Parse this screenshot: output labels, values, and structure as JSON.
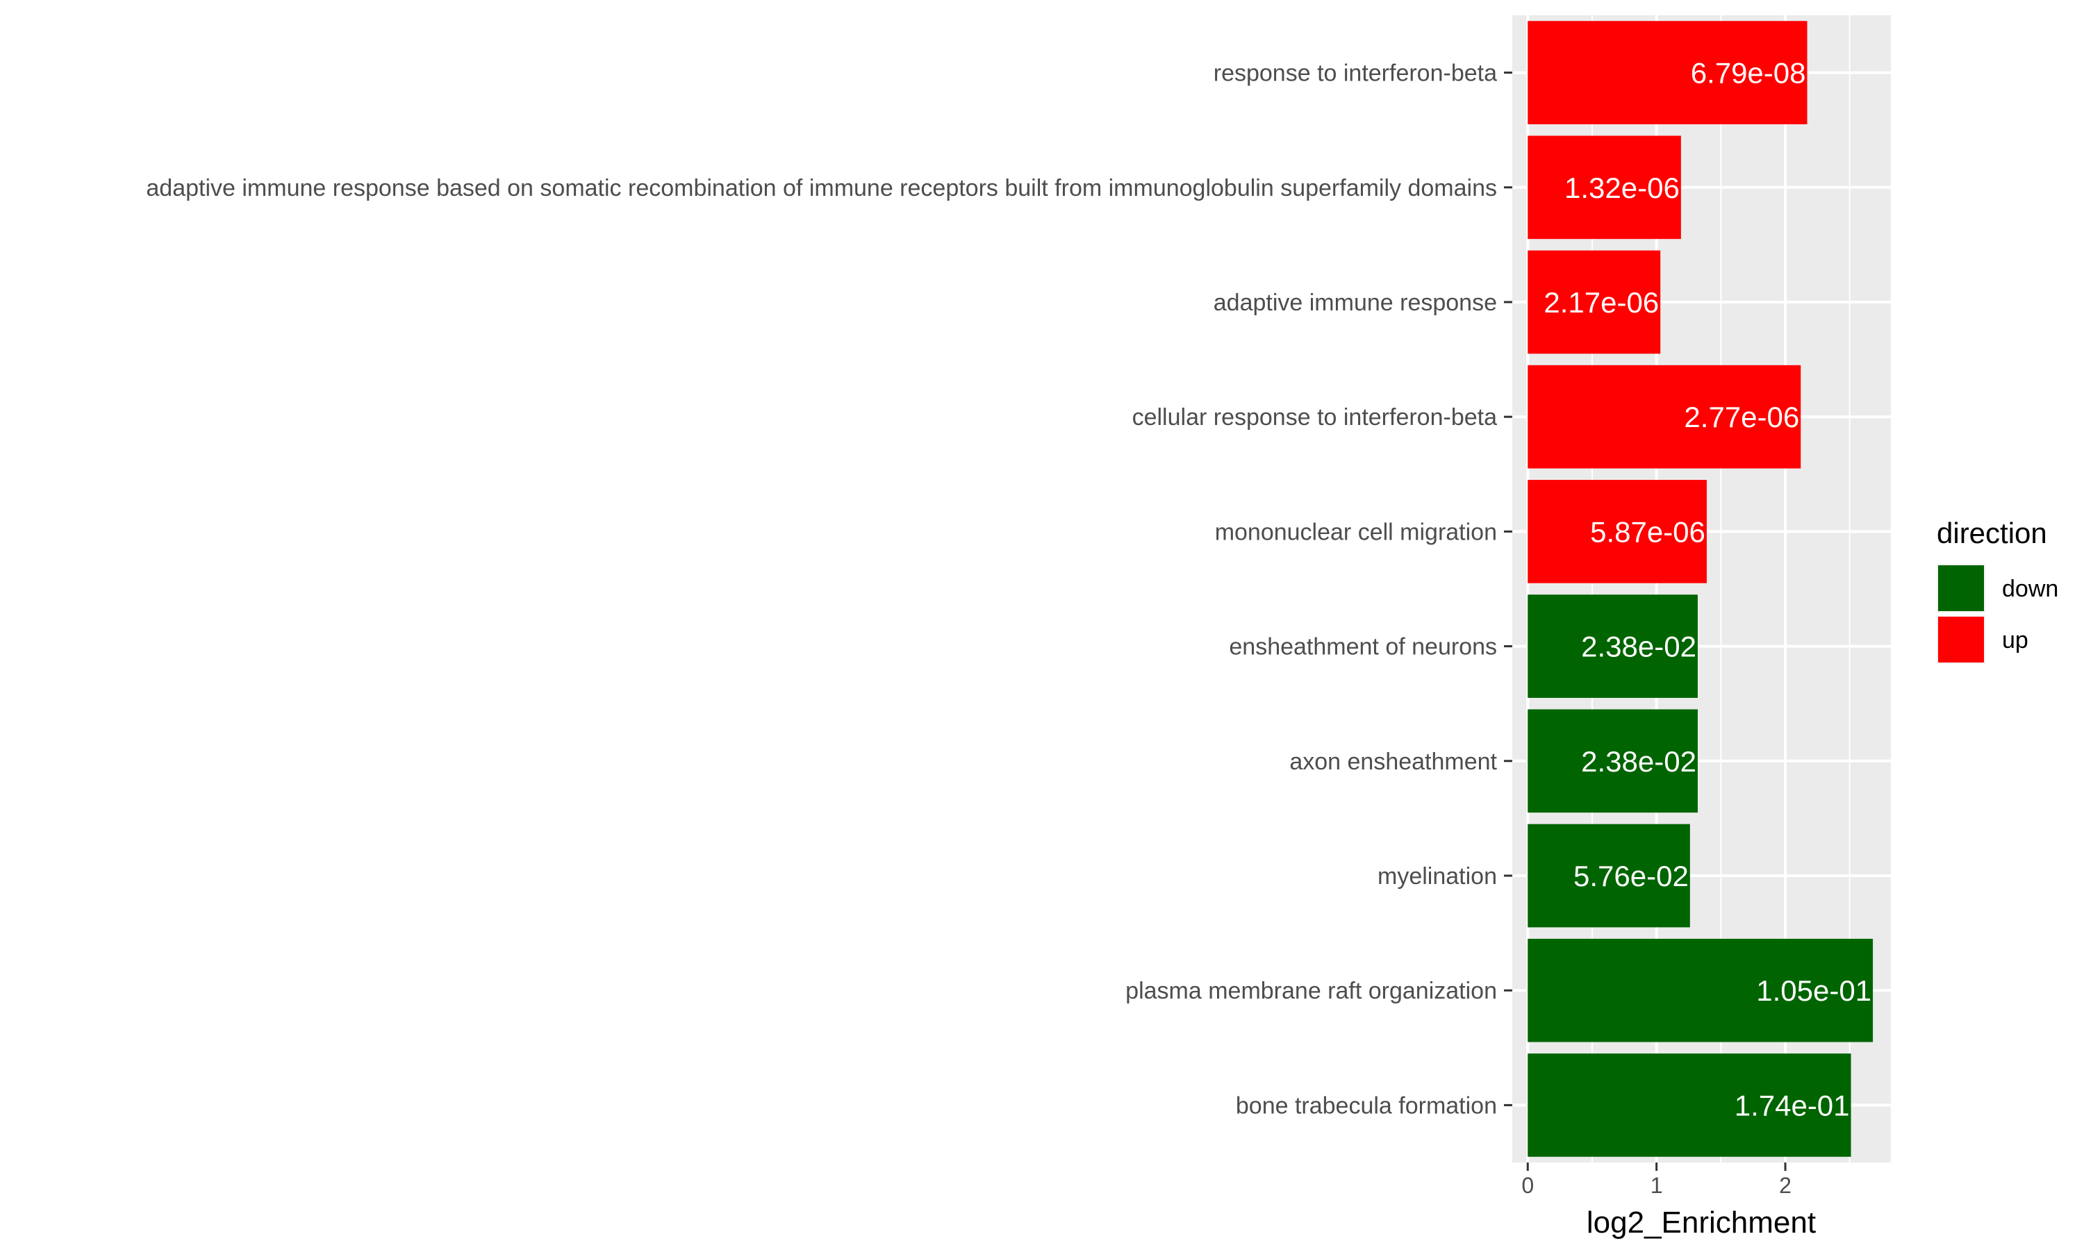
{
  "chart_data": {
    "type": "bar",
    "orientation": "horizontal",
    "categories": [
      "response to interferon-beta",
      "adaptive immune response based on somatic recombination of immune receptors built from immunoglobulin superfamily domains",
      "adaptive immune response",
      "cellular response to interferon-beta",
      "mononuclear cell migration",
      "ensheathment of neurons",
      "axon ensheathment",
      "myelination",
      "plasma membrane raft organization",
      "bone trabecula formation"
    ],
    "values": [
      2.17,
      1.19,
      1.03,
      2.12,
      1.39,
      1.32,
      1.32,
      1.26,
      2.68,
      2.51
    ],
    "direction": [
      "up",
      "up",
      "up",
      "up",
      "up",
      "down",
      "down",
      "down",
      "down",
      "down"
    ],
    "bar_labels": [
      "6.79e-08",
      "1.32e-06",
      "2.17e-06",
      "2.77e-06",
      "5.87e-06",
      "2.38e-02",
      "2.38e-02",
      "5.76e-02",
      "1.05e-01",
      "1.74e-01"
    ],
    "xlabel": "log2_Enrichment",
    "ylabel": "",
    "xlim": [
      -0.12,
      2.82
    ],
    "xticks": [
      0,
      1,
      2
    ],
    "grid": true,
    "legend": {
      "title": "direction",
      "position": "right",
      "items": [
        {
          "label": "down",
          "color": "#006400"
        },
        {
          "label": "up",
          "color": "#ff0000"
        }
      ]
    },
    "colors": {
      "up": "#ff0000",
      "down": "#006400",
      "panel": "#ebebeb",
      "grid": "#ffffff"
    }
  }
}
